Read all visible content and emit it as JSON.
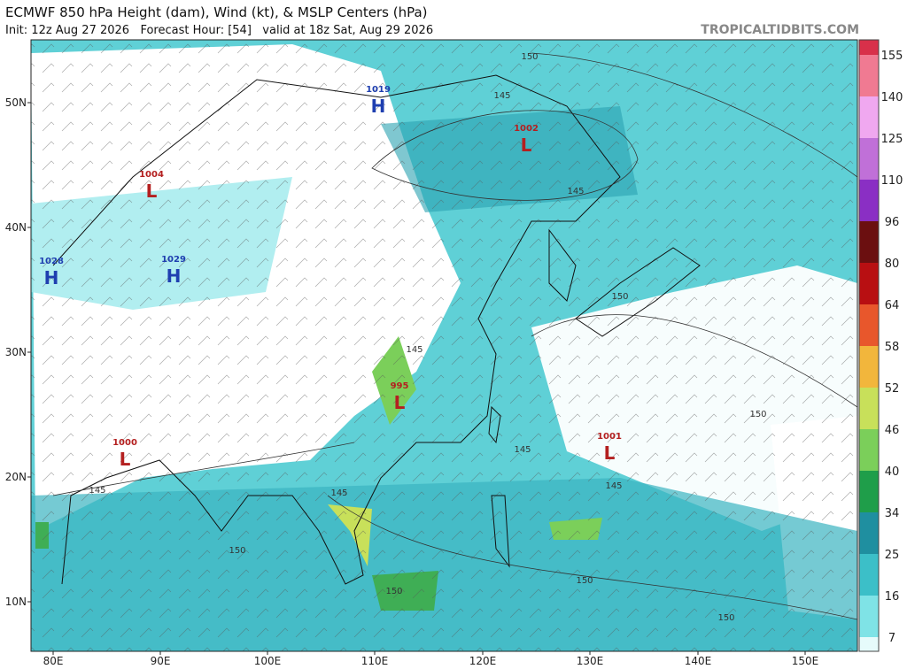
{
  "header": {
    "title": "ECMWF 850 hPa Height (dam), Wind (kt), & MSLP Centers (hPa)",
    "subtitle": "Init: 12z Aug 27 2026   Forecast Hour: [54]   valid at 18z Sat, Aug 29 2026",
    "site": "TROPICALTIDBITS.COM"
  },
  "map": {
    "lat_labels": [
      "50N",
      "40N",
      "30N",
      "20N",
      "10N"
    ],
    "lon_labels": [
      "80E",
      "90E",
      "100E",
      "110E",
      "120E",
      "130E",
      "140E",
      "150E"
    ],
    "centers": [
      {
        "value": "1019",
        "letter": "H"
      },
      {
        "value": "1002",
        "letter": "L"
      },
      {
        "value": "1004",
        "letter": "L"
      },
      {
        "value": "1028",
        "letter": "H"
      },
      {
        "value": "1029",
        "letter": "H"
      },
      {
        "value": "995",
        "letter": "L"
      },
      {
        "value": "1001",
        "letter": "L"
      },
      {
        "value": "1000",
        "letter": "L"
      }
    ],
    "contour_labels": [
      "150",
      "150",
      "150",
      "150",
      "150",
      "150",
      "150",
      "145",
      "145",
      "145",
      "145",
      "145",
      "145",
      "145"
    ]
  },
  "colorbar": {
    "ticks": [
      "7",
      "16",
      "25",
      "34",
      "40",
      "46",
      "52",
      "58",
      "64",
      "80",
      "96",
      "110",
      "125",
      "140",
      "155"
    ],
    "colors": [
      "#e6fbfb",
      "#7fe3e6",
      "#3cbfc8",
      "#1f8fa0",
      "#1f9e4a",
      "#7bcf5a",
      "#c8e05a",
      "#f2b63c",
      "#e8572c",
      "#b80f12",
      "#6b0f10",
      "#8a2fc4",
      "#c070d8",
      "#f0a8f0",
      "#f07a92",
      "#d8304a"
    ]
  }
}
